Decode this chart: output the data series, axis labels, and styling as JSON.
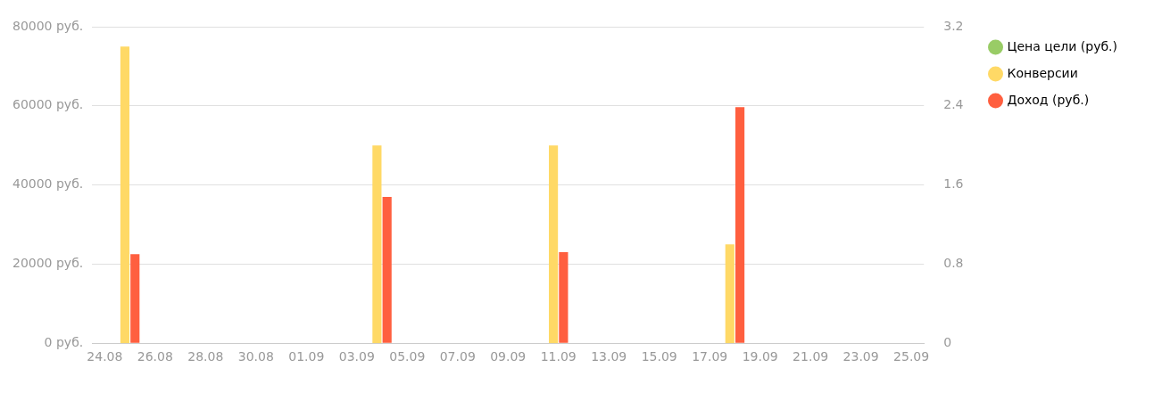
{
  "chart_data": {
    "type": "bar",
    "categories": [
      "24.08",
      null,
      "26.08",
      null,
      "28.08",
      null,
      "30.08",
      null,
      "01.09",
      null,
      "03.09",
      null,
      "05.09",
      null,
      "07.09",
      null,
      "09.09",
      null,
      "11.09",
      null,
      "13.09",
      null,
      "15.09",
      null,
      "17.09",
      null,
      "19.09",
      null,
      "21.09",
      null,
      "23.09",
      null,
      "25.09"
    ],
    "series": [
      {
        "name": "Цена цели (руб.)",
        "color": "#99cc66",
        "values": [
          null,
          null,
          null,
          null,
          null,
          null,
          null,
          null,
          null,
          null,
          null,
          null,
          null,
          null,
          null,
          null,
          null,
          null,
          null,
          null,
          null,
          null,
          null,
          null,
          null,
          null,
          null,
          null,
          null,
          null,
          null,
          null,
          null
        ]
      },
      {
        "name": "Конверсии",
        "color": "#ffd966",
        "axis": "y2",
        "values": [
          null,
          3,
          null,
          null,
          null,
          null,
          null,
          null,
          null,
          null,
          null,
          2,
          null,
          null,
          null,
          null,
          null,
          null,
          2,
          null,
          null,
          null,
          null,
          null,
          null,
          1,
          null,
          null,
          null,
          null,
          null,
          null,
          null
        ]
      },
      {
        "name": "Доход (руб.)",
        "color": "#ff5f3f",
        "values": [
          null,
          22500,
          null,
          null,
          null,
          null,
          null,
          null,
          null,
          null,
          null,
          37000,
          null,
          null,
          null,
          null,
          null,
          null,
          23000,
          null,
          null,
          null,
          null,
          null,
          null,
          59700,
          null,
          null,
          null,
          null,
          null,
          null,
          null
        ]
      }
    ],
    "ylim": [
      0,
      80000
    ],
    "yticks": [
      {
        "value": 0,
        "label": "0 руб."
      },
      {
        "value": 20000,
        "label": "20000 руб."
      },
      {
        "value": 40000,
        "label": "40000 руб."
      },
      {
        "value": 60000,
        "label": "60000 руб."
      },
      {
        "value": 80000,
        "label": "80000 руб."
      }
    ],
    "y2lim": [
      0,
      3.2
    ],
    "y2ticks": [
      0,
      0.8,
      1.6,
      2.4,
      3.2
    ],
    "grid": "y",
    "legend": "top right",
    "marker": "circle"
  }
}
